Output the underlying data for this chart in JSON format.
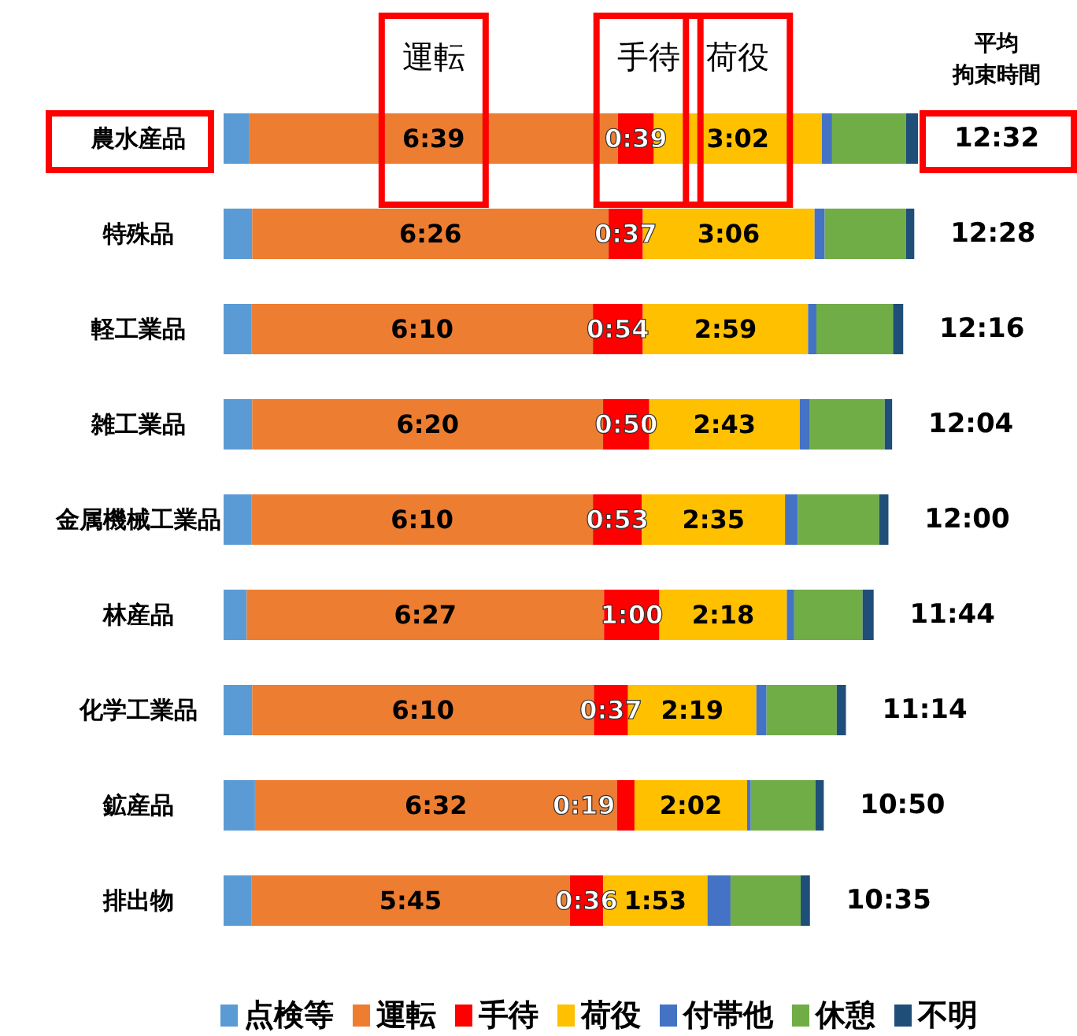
{
  "chart_data": {
    "type": "bar",
    "orientation": "horizontal",
    "stacked": true,
    "legend": "bottom",
    "categories": [
      "農水産品",
      "特殊品",
      "軽工業品",
      "雑工業品",
      "金属機械工業品",
      "林産品",
      "化学工業品",
      "鉱産品",
      "排出物"
    ],
    "series": [
      {
        "name": "点検等",
        "color": "#5b9bd5",
        "values": [
          28,
          31,
          30,
          31,
          30,
          25,
          31,
          34,
          30
        ]
      },
      {
        "name": "運転",
        "color": "#ed7d31",
        "values": [
          399,
          386,
          370,
          380,
          370,
          387,
          370,
          392,
          345
        ],
        "value_labels": [
          "6:39",
          "6:26",
          "6:10",
          "6:20",
          "6:10",
          "6:27",
          "6:10",
          "6:32",
          "5:45"
        ]
      },
      {
        "name": "手待",
        "color": "#ff0000",
        "values": [
          39,
          37,
          54,
          50,
          53,
          60,
          37,
          19,
          36
        ],
        "value_labels": [
          "0:39",
          "0:37",
          "0:54",
          "0:50",
          "0:53",
          "1:00",
          "0:37",
          "0:19",
          "0:36"
        ]
      },
      {
        "name": "荷役",
        "color": "#ffc000",
        "values": [
          182,
          186,
          179,
          163,
          155,
          138,
          139,
          122,
          113
        ],
        "value_labels": [
          "3:02",
          "3:06",
          "2:59",
          "2:43",
          "2:35",
          "2:18",
          "2:19",
          "2:02",
          "1:53"
        ]
      },
      {
        "name": "付帯他",
        "color": "#4472c4",
        "values": [
          11,
          11,
          9,
          11,
          14,
          8,
          11,
          4,
          25
        ]
      },
      {
        "name": "休憩",
        "color": "#70ad47",
        "values": [
          80,
          88,
          83,
          81,
          88,
          74,
          76,
          70,
          76
        ]
      },
      {
        "name": "不明",
        "color": "#1f4e79",
        "values": [
          13,
          9,
          11,
          8,
          10,
          12,
          10,
          9,
          10
        ]
      }
    ],
    "totals": [
      "12:32",
      "12:28",
      "12:16",
      "12:04",
      "12:00",
      "11:44",
      "11:14",
      "10:50",
      "10:35"
    ],
    "annotations": [
      "運転",
      "手待",
      "荷役",
      "平均",
      "拘束時間"
    ]
  }
}
